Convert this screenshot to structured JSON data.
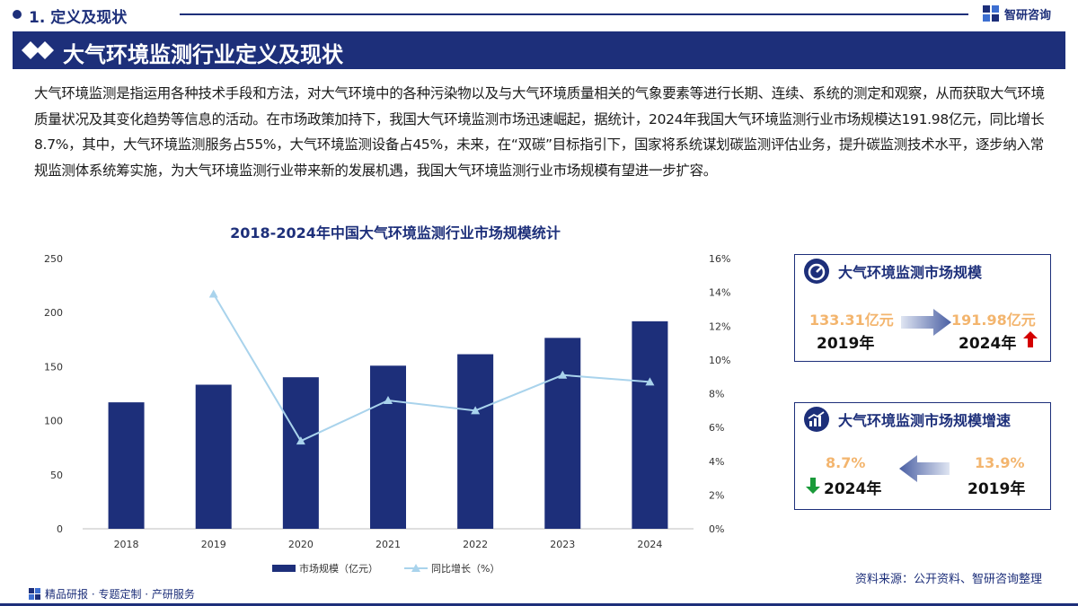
{
  "header": {
    "section": "1. 定义及现状",
    "brand": "智研咨询"
  },
  "banner": {
    "title": "大气环境监测行业定义及现状"
  },
  "intro": "大气环境监测是指运用各种技术手段和方法，对大气环境中的各种污染物以及与大气环境质量相关的气象要素等进行长期、连续、系统的测定和观察，从而获取大气环境质量状况及其变化趋势等信息的活动。在市场政策加持下，我国大气环境监测市场迅速崛起，据统计，2024年我国大气环境监测行业市场规模达191.98亿元，同比增长8.7%，其中，大气环境监测服务占55%，大气环境监测设备占45%，未来，在“双碳”目标指引下，国家将系统谋划碳监测评估业务，提升碳监测技术水平，逐步纳入常规监测体系统筹实施，为大气环境监测行业带来新的发展机遇，我国大气环境监测行业市场规模有望进一步扩容。",
  "chart_data": {
    "type": "bar",
    "title": "2018-2024年中国大气环境监测行业市场规模统计",
    "categories": [
      "2018",
      "2019",
      "2020",
      "2021",
      "2022",
      "2023",
      "2024"
    ],
    "series": [
      {
        "name": "市场规模（亿元）",
        "type": "bar",
        "axis": "left",
        "values": [
          117.0,
          133.31,
          140.2,
          150.9,
          161.5,
          176.6,
          191.98
        ]
      },
      {
        "name": "同比增长（%）",
        "type": "line",
        "axis": "right",
        "values": [
          null,
          13.9,
          5.2,
          7.6,
          7.0,
          9.1,
          8.7
        ]
      }
    ],
    "y_left": {
      "ticks": [
        "0",
        "50",
        "100",
        "150",
        "200",
        "250"
      ],
      "range": [
        0,
        250
      ]
    },
    "y_right": {
      "ticks": [
        "0%",
        "2%",
        "4%",
        "6%",
        "8%",
        "10%",
        "12%",
        "14%",
        "16%"
      ],
      "range": [
        0,
        16
      ]
    },
    "legend_position": "bottom",
    "colors": {
      "bar": "#1d2f7a",
      "line": "#a9d3ec"
    }
  },
  "card_scale": {
    "title": "大气环境监测市场规模",
    "left_value": "133.31亿元",
    "left_year": "2019年",
    "right_value": "191.98亿元",
    "right_year": "2024年",
    "trend": "up"
  },
  "card_growth": {
    "title": "大气环境监测市场规模增速",
    "left_value": "8.7%",
    "left_year": "2024年",
    "right_value": "13.9%",
    "right_year": "2019年",
    "trend": "down"
  },
  "footer": {
    "left": "精品研报 · 专题定制 · 产研服务",
    "source": "资料来源：公开资料、智研咨询整理"
  },
  "colors": {
    "primary": "#1d2f7a",
    "accent_value": "#f3b56e",
    "up": "#d40000",
    "down": "#1a9a3a"
  }
}
